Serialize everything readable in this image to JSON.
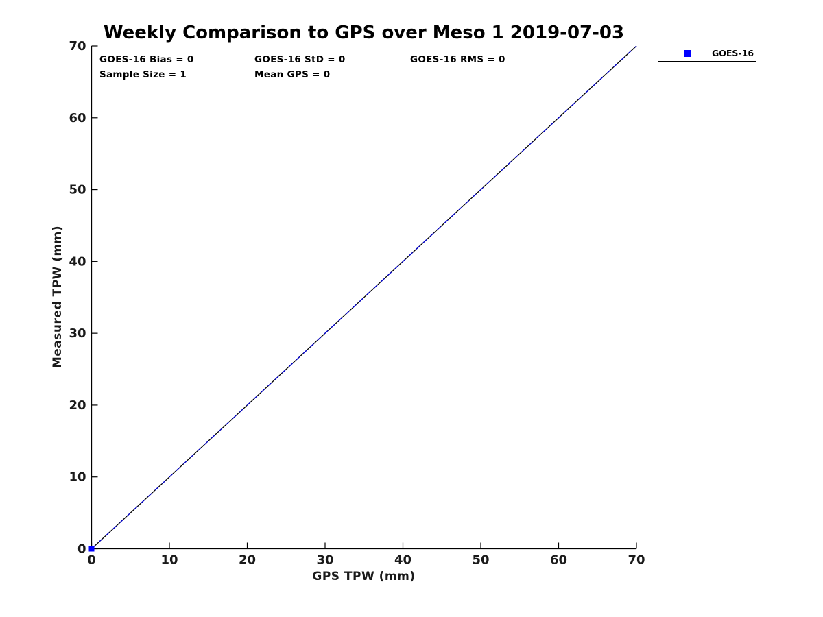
{
  "chart_data": {
    "type": "scatter",
    "title": "Weekly Comparison to GPS over Meso 1 2019-07-03",
    "xlabel": "GPS TPW (mm)",
    "ylabel": "Measured TPW (mm)",
    "xlim": [
      0,
      70
    ],
    "ylim": [
      0,
      70
    ],
    "x_ticks": [
      0,
      10,
      20,
      30,
      40,
      50,
      60,
      70
    ],
    "y_ticks": [
      0,
      10,
      20,
      30,
      40,
      50,
      60,
      70
    ],
    "grid": false,
    "annotations": [
      "GOES-16 Bias = 0",
      "GOES-16 StD = 0",
      "GOES-16 RMS = 0",
      "Sample Size = 1",
      "Mean GPS = 0"
    ],
    "series": [
      {
        "name": "GOES-16",
        "marker": "square",
        "color": "#0000ff",
        "points": [
          [
            0,
            0
          ]
        ]
      }
    ],
    "lines": [
      {
        "name": "identity",
        "style": "solid",
        "color": "#000000",
        "from": [
          0,
          0
        ],
        "to": [
          70,
          70
        ]
      },
      {
        "name": "fit",
        "style": "dashed",
        "color": "#0000cd",
        "from": [
          0,
          0
        ],
        "to": [
          70,
          70
        ]
      }
    ],
    "legend": {
      "position": "outside-top-right",
      "entries": [
        {
          "label": "GOES-16",
          "marker": "square",
          "color": "#0000ff"
        }
      ]
    },
    "axis_color": "#000000",
    "tick_label_color": "#1a1a1a"
  }
}
